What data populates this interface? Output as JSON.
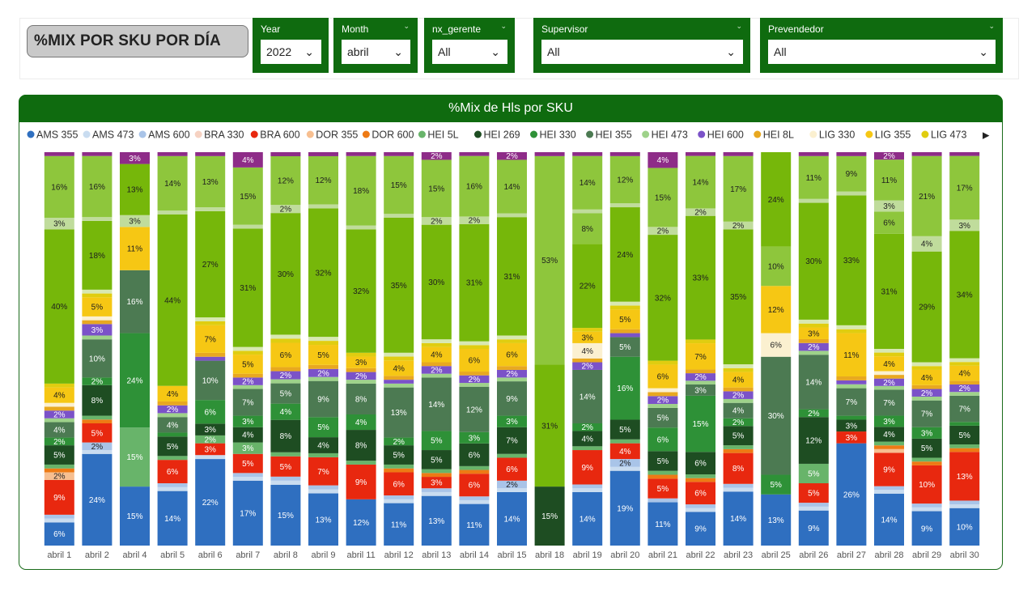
{
  "page_title": "%MIX POR SKU POR DÍA",
  "filters": [
    {
      "label": "Year",
      "value": "2022"
    },
    {
      "label": "Month",
      "value": "abril"
    },
    {
      "label": "nx_gerente",
      "value": "All"
    },
    {
      "label": "Supervisor",
      "value": "All"
    },
    {
      "label": "Prevendedor",
      "value": "All"
    }
  ],
  "colors": {
    "header_green": "#0f6b0f",
    "AMS 355": "#2f6fc0",
    "AMS 473": "#c9dcf0",
    "AMS 600": "#a9c4e8",
    "BRA 330": "#f6d2c2",
    "BRA 600": "#e8280f",
    "DOR 355": "#f7bf90",
    "DOR 600": "#ee7a14",
    "HEI  5L": "#68b46a",
    "HEI 269": "#1e4d22",
    "HEI 330": "#2e9137",
    "HEI 355": "#4c7a52",
    "HEI 473": "#9ed28a",
    "HEI 600": "#7b52c8",
    "HEI 8L": "#e8a820",
    "LIG 330": "#fbf0d0",
    "LIG 355": "#f6c714",
    "LIG 473": "#e0cd10",
    "X1": "#d8e8b2",
    "X2": "#76b70a",
    "X3": "#8ec63c",
    "X4": "#c0dc9c",
    "X5": "#8e2c88"
  },
  "chart_data": {
    "type": "bar",
    "stacked": "100%",
    "title": "%Mix de Hls por SKU",
    "xlabel": "",
    "ylabel": "",
    "ylim": [
      0,
      100
    ],
    "categories": [
      "abril 1",
      "abril 2",
      "abril 4",
      "abril 5",
      "abril 6",
      "abril 7",
      "abril 8",
      "abril 9",
      "abril 11",
      "abril 12",
      "abril 13",
      "abril 14",
      "abril 15",
      "abril 18",
      "abril 19",
      "abril 20",
      "abril 21",
      "abril 22",
      "abril 23",
      "abril 25",
      "abril 26",
      "abril 27",
      "abril 28",
      "abril 29",
      "abril 30"
    ],
    "legend": {
      "position": "top",
      "items": [
        "AMS 355",
        "AMS 473",
        "AMS 600",
        "BRA 330",
        "BRA 600",
        "DOR 355",
        "DOR 600",
        "HEI  5L",
        "HEI 269",
        "HEI 330",
        "HEI 355",
        "HEI 473",
        "HEI 600",
        "HEI 8L",
        "LIG 330",
        "LIG 355",
        "LIG 473"
      ]
    },
    "series": [
      {
        "name": "AMS 355",
        "color_key": "AMS 355",
        "values": [
          6,
          24,
          15,
          14,
          22,
          17,
          15,
          13,
          12,
          11,
          13,
          11,
          14,
          0,
          14,
          19,
          11,
          9,
          14,
          13,
          9,
          26,
          14,
          9,
          10
        ]
      },
      {
        "name": "AMS 473",
        "color_key": "AMS 473",
        "values": [
          1,
          1,
          0,
          1,
          1,
          1,
          1,
          1,
          0,
          1,
          1,
          1,
          1,
          0,
          1,
          1,
          0,
          1,
          1,
          0,
          1,
          0,
          1,
          1,
          1
        ]
      },
      {
        "name": "AMS 600",
        "color_key": "AMS 600",
        "values": [
          1,
          2,
          0,
          1,
          0,
          1,
          1,
          1,
          0,
          1,
          1,
          1,
          2,
          0,
          1,
          2,
          1,
          1,
          1,
          0,
          1,
          0,
          1,
          1,
          1
        ]
      },
      {
        "name": "BRA 330",
        "color_key": "BRA 330",
        "values": [
          0,
          0,
          0,
          0,
          0,
          0,
          0,
          0,
          0,
          0,
          0,
          0,
          0,
          0,
          0,
          0,
          0,
          0,
          0,
          0,
          0,
          0,
          0,
          0,
          0
        ]
      },
      {
        "name": "BRA 600",
        "color_key": "BRA 600",
        "values": [
          9,
          5,
          0,
          6,
          3,
          5,
          5,
          7,
          9,
          6,
          3,
          6,
          6,
          0,
          9,
          4,
          5,
          6,
          8,
          0,
          5,
          3,
          9,
          10,
          13
        ]
      },
      {
        "name": "DOR 355",
        "color_key": "DOR 355",
        "values": [
          2,
          0,
          0,
          0,
          0,
          0,
          0,
          0,
          0,
          0,
          0,
          0,
          0,
          0,
          0,
          0,
          0,
          0,
          0,
          0,
          0,
          0,
          1,
          0,
          0
        ]
      },
      {
        "name": "DOR 600",
        "color_key": "DOR 600",
        "values": [
          1,
          1,
          0,
          0,
          0,
          0,
          0,
          0,
          0,
          1,
          1,
          1,
          0,
          0,
          0,
          0,
          1,
          1,
          1,
          0,
          0,
          0,
          1,
          1,
          1
        ]
      },
      {
        "name": "HEI  5L",
        "color_key": "HEI  5L",
        "values": [
          1,
          1,
          15,
          1,
          2,
          3,
          1,
          1,
          1,
          1,
          1,
          1,
          1,
          0,
          1,
          1,
          1,
          1,
          1,
          0,
          5,
          0,
          1,
          1,
          1
        ]
      },
      {
        "name": "HEI 269",
        "color_key": "HEI 269",
        "values": [
          5,
          8,
          0,
          5,
          3,
          4,
          8,
          4,
          8,
          5,
          5,
          6,
          7,
          15,
          4,
          5,
          5,
          6,
          5,
          0,
          12,
          3,
          4,
          5,
          5
        ]
      },
      {
        "name": "HEI 330",
        "color_key": "HEI 330",
        "values": [
          2,
          2,
          24,
          1,
          6,
          3,
          4,
          5,
          4,
          2,
          5,
          3,
          3,
          0,
          2,
          16,
          6,
          15,
          2,
          5,
          2,
          1,
          3,
          3,
          1
        ]
      },
      {
        "name": "HEI 355",
        "color_key": "HEI 355",
        "values": [
          4,
          10,
          16,
          4,
          10,
          7,
          5,
          9,
          8,
          13,
          14,
          12,
          9,
          0,
          14,
          5,
          5,
          3,
          4,
          30,
          14,
          7,
          7,
          7,
          7
        ]
      },
      {
        "name": "HEI 473",
        "color_key": "HEI 473",
        "values": [
          1,
          1,
          0,
          1,
          0,
          1,
          1,
          1,
          1,
          1,
          1,
          1,
          1,
          0,
          0,
          0,
          1,
          1,
          1,
          0,
          1,
          1,
          1,
          1,
          1
        ]
      },
      {
        "name": "HEI 600",
        "color_key": "HEI 600",
        "values": [
          2,
          3,
          0,
          2,
          1,
          2,
          2,
          2,
          2,
          1,
          2,
          2,
          2,
          0,
          2,
          1,
          2,
          2,
          2,
          0,
          2,
          1,
          2,
          2,
          2
        ]
      },
      {
        "name": "HEI 8L",
        "color_key": "HEI 8L",
        "values": [
          1,
          1,
          0,
          1,
          1,
          1,
          1,
          1,
          1,
          1,
          1,
          1,
          1,
          0,
          1,
          1,
          1,
          1,
          1,
          0,
          1,
          1,
          1,
          1,
          1
        ]
      },
      {
        "name": "LIG 330",
        "color_key": "LIG 330",
        "values": [
          1,
          1,
          0,
          0,
          0,
          0,
          0,
          0,
          0,
          0,
          0,
          0,
          0,
          0,
          4,
          0,
          1,
          0,
          0,
          6,
          0,
          0,
          1,
          0,
          0
        ]
      },
      {
        "name": "LIG 355",
        "color_key": "LIG 355",
        "values": [
          4,
          5,
          11,
          4,
          7,
          5,
          6,
          5,
          3,
          4,
          4,
          6,
          6,
          0,
          3,
          5,
          6,
          7,
          4,
          12,
          3,
          11,
          4,
          4,
          4
        ]
      },
      {
        "name": "LIG 473",
        "color_key": "LIG 473",
        "values": [
          1,
          1,
          0,
          0,
          1,
          1,
          1,
          1,
          1,
          1,
          1,
          1,
          1,
          0,
          1,
          1,
          1,
          1,
          1,
          0,
          1,
          1,
          1,
          1,
          1
        ]
      },
      {
        "name": "",
        "color_key": "X1",
        "values": [
          0,
          1,
          0,
          0,
          1,
          1,
          1,
          1,
          0,
          1,
          1,
          1,
          1,
          0,
          0,
          1,
          0,
          0,
          1,
          0,
          1,
          1,
          1,
          1,
          1
        ]
      },
      {
        "name": "",
        "color_key": "X2",
        "values": [
          40,
          18,
          0,
          44,
          27,
          31,
          30,
          32,
          32,
          35,
          30,
          31,
          31,
          31,
          22,
          24,
          32,
          33,
          35,
          0,
          30,
          33,
          31,
          29,
          34
        ]
      },
      {
        "name": "",
        "color_key": "X3",
        "values": [
          0,
          0,
          0,
          0,
          0,
          0,
          0,
          0,
          0,
          0,
          0,
          0,
          0,
          0,
          8,
          0,
          0,
          0,
          0,
          10,
          0,
          0,
          6,
          0,
          0
        ]
      },
      {
        "name": "",
        "color_key": "X4",
        "values": [
          3,
          1,
          3,
          1,
          1,
          1,
          2,
          1,
          1,
          1,
          2,
          2,
          1,
          0,
          1,
          1,
          2,
          2,
          2,
          0,
          1,
          1,
          3,
          4,
          3
        ]
      },
      {
        "name": "",
        "color_key": "X2",
        "values": [
          0,
          0,
          13,
          0,
          0,
          0,
          0,
          0,
          0,
          0,
          0,
          0,
          0,
          0,
          0,
          0,
          0,
          0,
          0,
          24,
          0,
          0,
          0,
          0,
          0
        ]
      },
      {
        "name": "",
        "color_key": "X3",
        "values": [
          16,
          16,
          0,
          14,
          13,
          15,
          12,
          12,
          18,
          15,
          15,
          16,
          14,
          53,
          14,
          12,
          15,
          14,
          17,
          0,
          11,
          9,
          11,
          21,
          17
        ]
      },
      {
        "name": "",
        "color_key": "X5",
        "values": [
          1,
          1,
          3,
          1,
          1,
          4,
          1,
          1,
          1,
          1,
          2,
          1,
          2,
          1,
          1,
          1,
          4,
          1,
          1,
          0,
          1,
          1,
          2,
          1,
          1
        ]
      }
    ]
  }
}
